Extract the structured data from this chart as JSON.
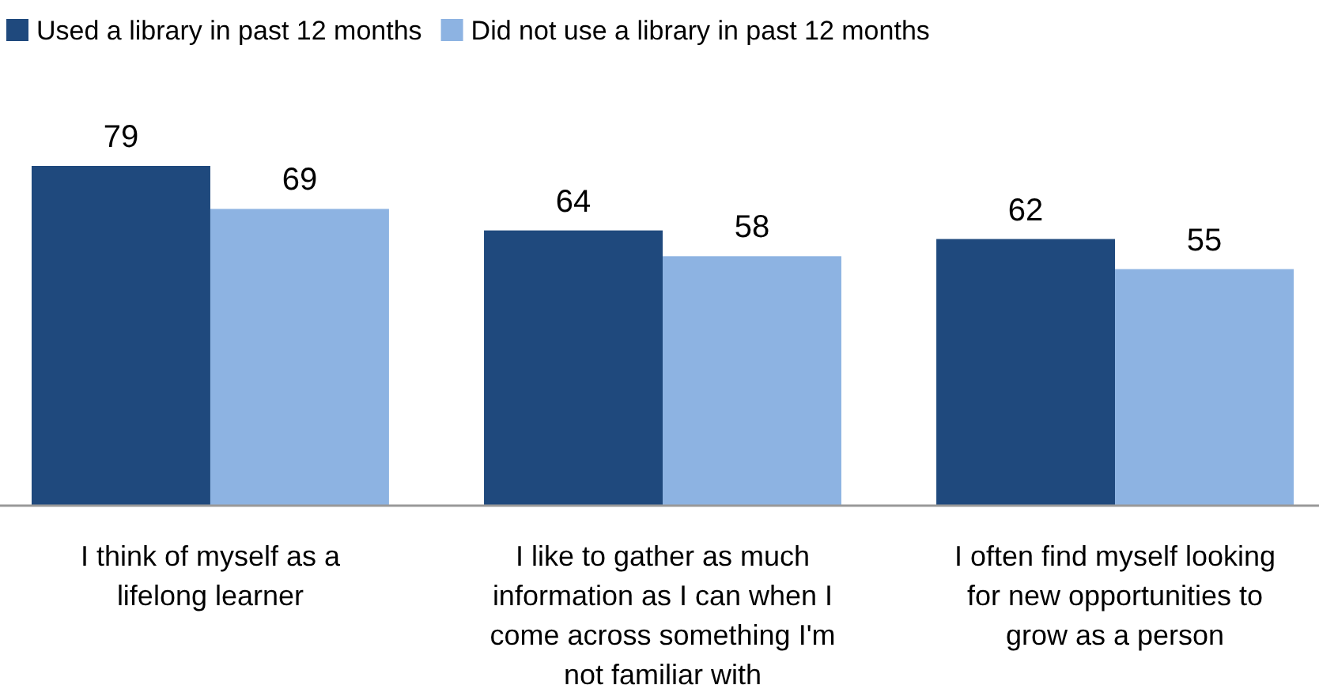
{
  "chart_data": {
    "type": "bar",
    "categories": [
      "I think of myself as a lifelong learner",
      "I like to gather as much information as I can when I come across something I'm not familiar with",
      "I often find myself looking for new opportunities to grow as a person"
    ],
    "series": [
      {
        "name": "Used a library in past 12 months",
        "color": "#1f497d",
        "values": [
          79,
          64,
          62
        ]
      },
      {
        "name": "Did not use a library in past 12 months",
        "color": "#8db3e2",
        "values": [
          69,
          58,
          55
        ]
      }
    ],
    "data_labels": true,
    "legend": "top left",
    "tick_labels": "x"
  }
}
